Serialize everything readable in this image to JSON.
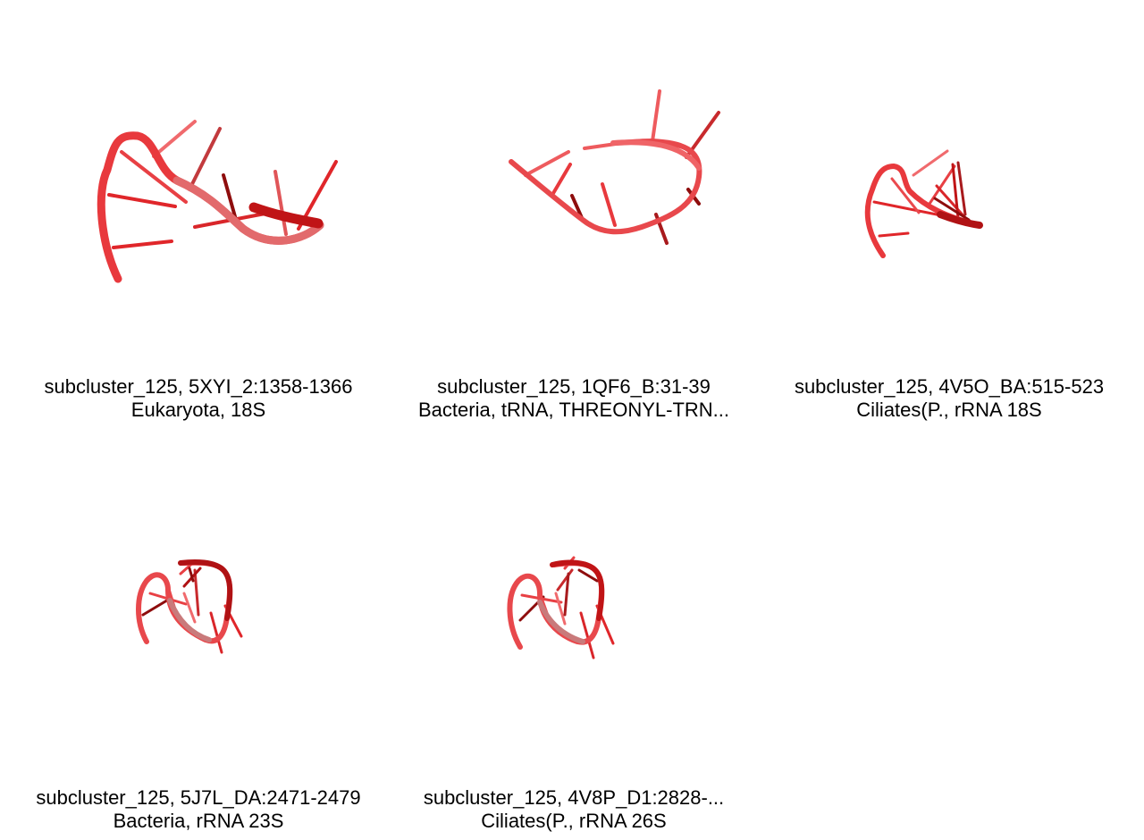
{
  "colors": {
    "backbone": "#e8393d",
    "backbone_light": "#f06a6d",
    "backbone_dark": "#9c1010",
    "base": "#e03a3e",
    "base_dark": "#8e0d0d",
    "background": "#ffffff"
  },
  "panels": [
    {
      "id": "p1",
      "line1": "subcluster_125, 5XYI_2:1358-1366",
      "line2": "Eukaryota, 18S"
    },
    {
      "id": "p2",
      "line1": "subcluster_125, 1QF6_B:31-39",
      "line2": "Bacteria, tRNA, THREONYL-TRN..."
    },
    {
      "id": "p3",
      "line1": "subcluster_125, 4V5O_BA:515-523",
      "line2": "Ciliates(P., rRNA 18S"
    },
    {
      "id": "p4",
      "line1": "subcluster_125, 5J7L_DA:2471-2479",
      "line2": "Bacteria, rRNA 23S"
    },
    {
      "id": "p5",
      "line1": "subcluster_125, 4V8P_D1:2828-...",
      "line2": "Ciliates(P., rRNA 26S"
    }
  ]
}
